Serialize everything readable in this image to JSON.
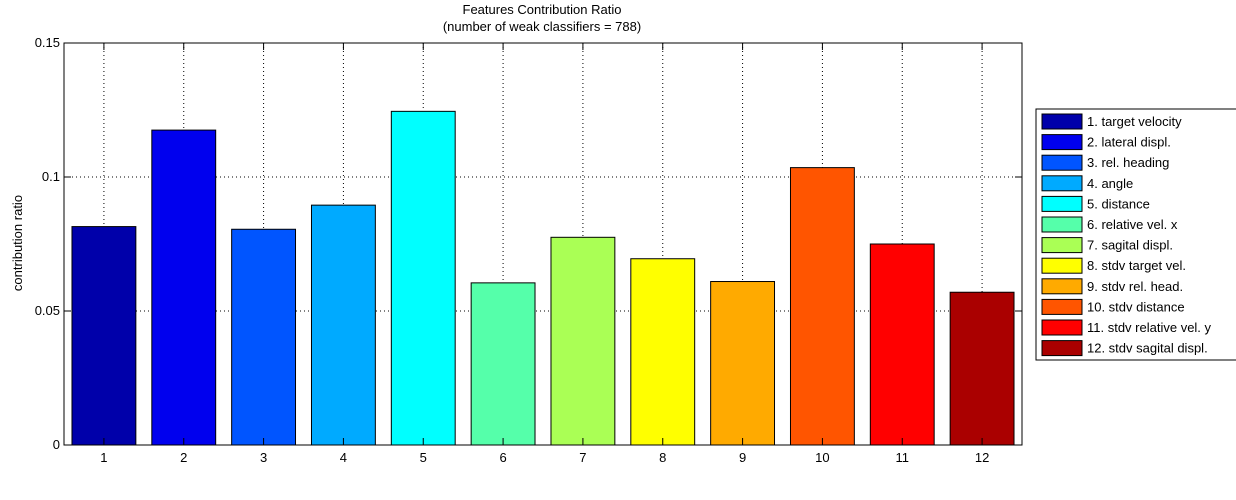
{
  "chart_data": {
    "type": "bar",
    "title": "Features Contribution Ratio",
    "subtitle": "(number of weak classifiers = 788)",
    "xlabel": "",
    "ylabel": "contribution ratio",
    "categories": [
      "1",
      "2",
      "3",
      "4",
      "5",
      "6",
      "7",
      "8",
      "9",
      "10",
      "11",
      "12"
    ],
    "values": [
      0.0815,
      0.1175,
      0.0805,
      0.0895,
      0.1245,
      0.0605,
      0.0775,
      0.0695,
      0.061,
      0.1035,
      0.075,
      0.057
    ],
    "colors": [
      "#0000AA",
      "#0000EE",
      "#0055FF",
      "#00AAFF",
      "#00FFFF",
      "#55FFAA",
      "#AAFF55",
      "#FFFF00",
      "#FFAA00",
      "#FF5500",
      "#FF0000",
      "#AA0000"
    ],
    "ylim": [
      0,
      0.15
    ],
    "yticks": [
      "0",
      "0.05",
      "0.1",
      "0.15"
    ],
    "ytick_values": [
      0,
      0.05,
      0.1,
      0.15
    ],
    "grid": true,
    "legend_placement": "right",
    "legend": [
      "1. target velocity",
      "2. lateral displ.",
      "3. rel. heading",
      "4. angle",
      "5. distance",
      "6. relative vel. x",
      "7. sagital displ.",
      "8. stdv target vel.",
      "9. stdv rel. head.",
      "10. stdv distance",
      "11. stdv relative vel. y",
      "12. stdv sagital displ."
    ]
  }
}
